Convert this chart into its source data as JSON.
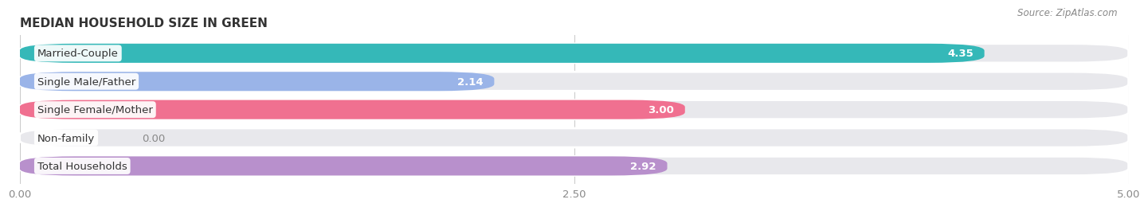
{
  "title": "MEDIAN HOUSEHOLD SIZE IN GREEN",
  "source": "Source: ZipAtlas.com",
  "categories": [
    "Married-Couple",
    "Single Male/Father",
    "Single Female/Mother",
    "Non-family",
    "Total Households"
  ],
  "values": [
    4.35,
    2.14,
    3.0,
    0.0,
    2.92
  ],
  "bar_colors": [
    "#35b8b8",
    "#9ab4e8",
    "#f07090",
    "#f0c898",
    "#b890cc"
  ],
  "xlim": [
    0.0,
    5.0
  ],
  "xticks": [
    0.0,
    2.5,
    5.0
  ],
  "xtick_labels": [
    "0.00",
    "2.50",
    "5.00"
  ],
  "value_labels": [
    "4.35",
    "2.14",
    "3.00",
    "0.00",
    "2.92"
  ],
  "bg_color": "#f5f5f5",
  "bar_bg_color": "#e8e8ec",
  "title_fontsize": 11,
  "label_fontsize": 9.5,
  "value_fontsize": 9.5,
  "source_fontsize": 8.5,
  "bar_height": 0.68,
  "bar_gap": 1.0
}
